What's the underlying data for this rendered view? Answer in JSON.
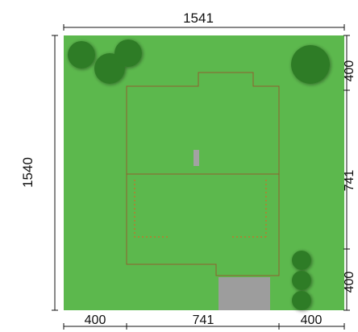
{
  "dimensions": {
    "top": "1541",
    "left": "1540",
    "right": [
      "400",
      "741",
      "400"
    ],
    "bottom": [
      "400",
      "741",
      "400"
    ]
  },
  "colors": {
    "lawn": "#5cb84d",
    "roof": "#c86f2e",
    "roof_light": "#f59a42",
    "driveway": "#9d9d9d",
    "tree": "#2f7c25",
    "tree_dark": "#225f1b",
    "chimney": "#a2a2a2"
  }
}
